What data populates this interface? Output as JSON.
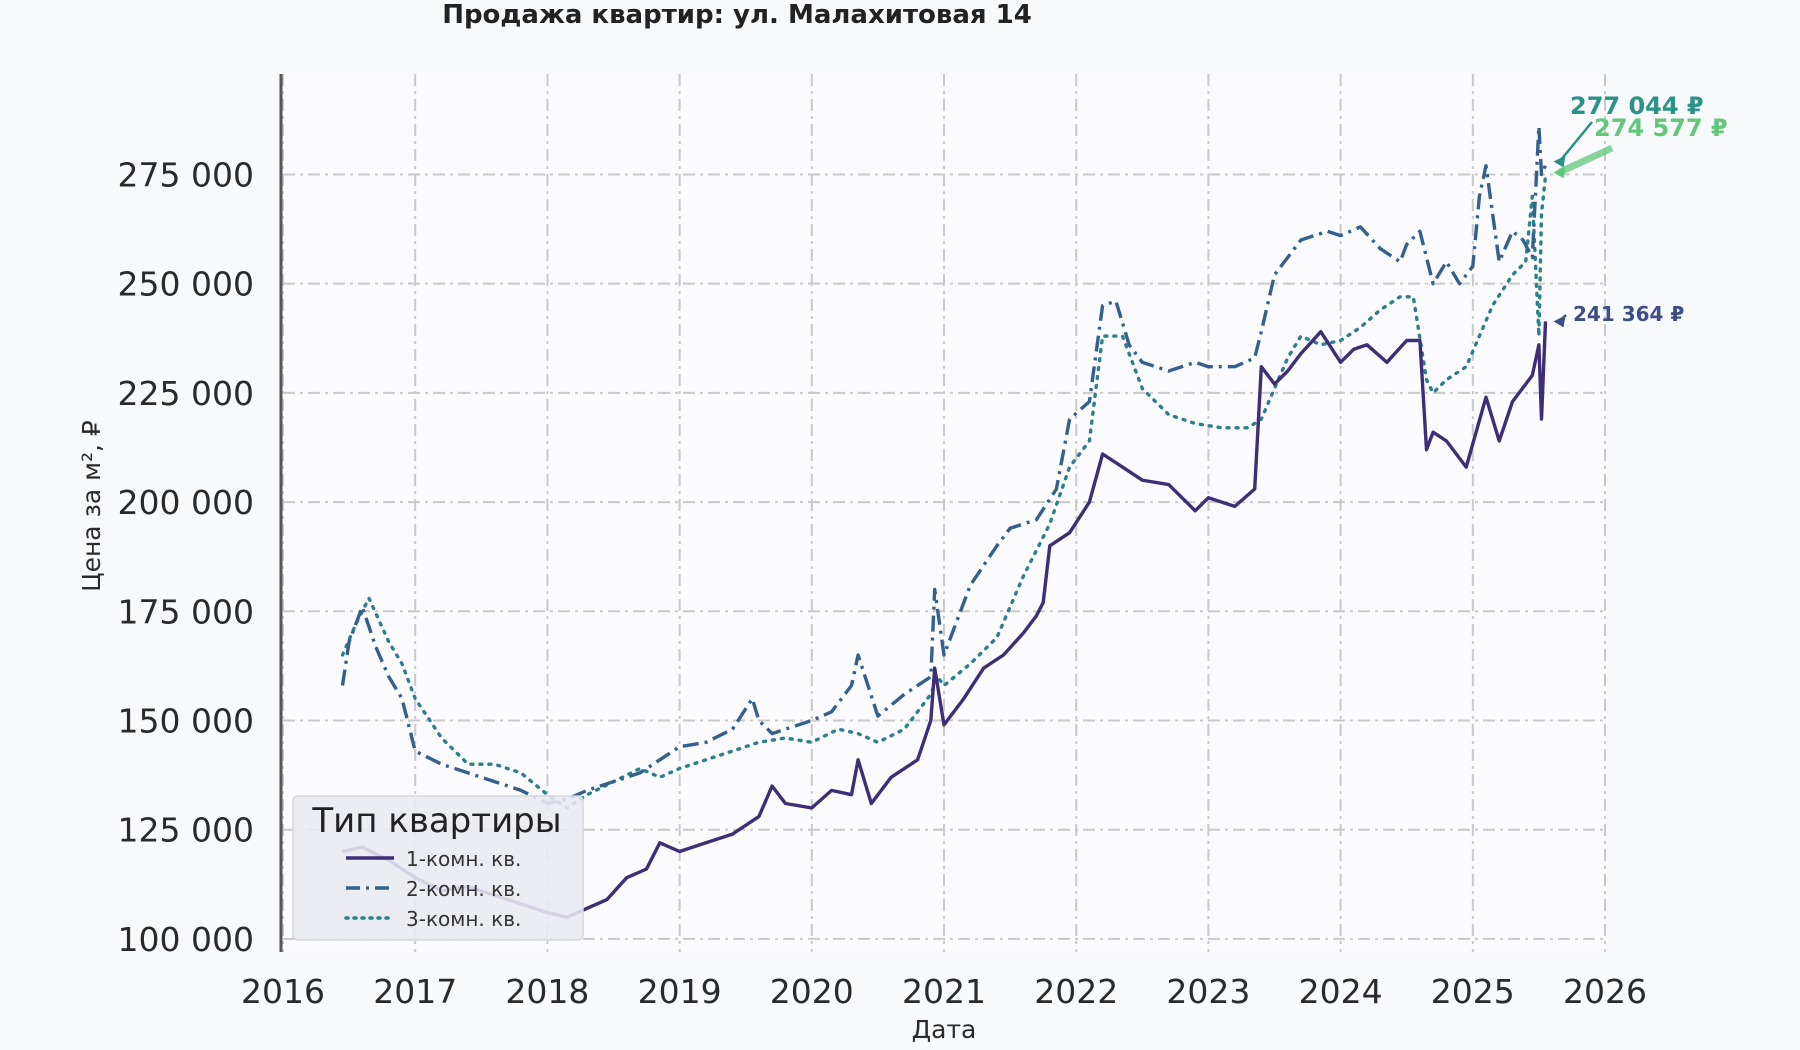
{
  "chart_data": {
    "type": "line",
    "title": "Продажа квартир: ул. Малахитовая 14",
    "xlabel": "Дата",
    "ylabel": "Цена за м², ₽",
    "xlim": [
      2016.0,
      2026.0
    ],
    "ylim": [
      97000,
      298000
    ],
    "x_ticks": [
      "2016",
      "2017",
      "2018",
      "2019",
      "2020",
      "2021",
      "2022",
      "2023",
      "2024",
      "2025",
      "2026"
    ],
    "y_ticks": [
      "100 000",
      "125 000",
      "150 000",
      "175 000",
      "200 000",
      "225 000",
      "250 000",
      "275 000"
    ],
    "y_tick_values": [
      100000,
      125000,
      150000,
      175000,
      200000,
      225000,
      250000,
      275000
    ],
    "grid": true,
    "legend": {
      "title": "Тип квартиры",
      "placement": "lower-left"
    },
    "series": [
      {
        "name": "1-комн. кв.",
        "color": "#3f2d76",
        "style": "solid",
        "x": [
          2016.45,
          2016.6,
          2016.8,
          2017.0,
          2017.2,
          2017.4,
          2017.6,
          2017.8,
          2018.0,
          2018.15,
          2018.3,
          2018.45,
          2018.6,
          2018.75,
          2018.85,
          2019.0,
          2019.2,
          2019.4,
          2019.6,
          2019.7,
          2019.8,
          2020.0,
          2020.15,
          2020.3,
          2020.35,
          2020.45,
          2020.6,
          2020.8,
          2020.9,
          2020.93,
          2021.0,
          2021.15,
          2021.3,
          2021.45,
          2021.6,
          2021.7,
          2021.75,
          2021.8,
          2021.95,
          2022.1,
          2022.2,
          2022.35,
          2022.5,
          2022.7,
          2022.9,
          2023.0,
          2023.2,
          2023.35,
          2023.4,
          2023.5,
          2023.6,
          2023.7,
          2023.85,
          2024.0,
          2024.1,
          2024.2,
          2024.35,
          2024.5,
          2024.6,
          2024.65,
          2024.7,
          2024.8,
          2024.95,
          2025.1,
          2025.2,
          2025.3,
          2025.45,
          2025.5,
          2025.52,
          2025.55
        ],
        "y": [
          120000,
          121000,
          118000,
          114000,
          111000,
          112000,
          110000,
          108000,
          106000,
          105000,
          107000,
          109000,
          114000,
          116000,
          122000,
          120000,
          122000,
          124000,
          128000,
          135000,
          131000,
          130000,
          134000,
          133000,
          141000,
          131000,
          137000,
          141000,
          150000,
          162000,
          149000,
          155000,
          162000,
          165000,
          170000,
          174000,
          177000,
          190000,
          193000,
          200000,
          211000,
          208000,
          205000,
          204000,
          198000,
          201000,
          199000,
          203000,
          231000,
          227000,
          230000,
          234000,
          239000,
          232000,
          235000,
          236000,
          232000,
          237000,
          237000,
          212000,
          216000,
          214000,
          208000,
          224000,
          214000,
          223000,
          229000,
          236000,
          219000,
          241364
        ]
      },
      {
        "name": "2-комн. кв.",
        "color": "#34608d",
        "style": "dashdot",
        "x": [
          2016.45,
          2016.5,
          2016.6,
          2016.7,
          2016.8,
          2016.9,
          2017.0,
          2017.2,
          2017.4,
          2017.6,
          2017.8,
          2018.0,
          2018.15,
          2018.3,
          2018.5,
          2018.7,
          2018.85,
          2019.0,
          2019.2,
          2019.4,
          2019.55,
          2019.6,
          2019.7,
          2019.8,
          2020.0,
          2020.15,
          2020.3,
          2020.35,
          2020.5,
          2020.7,
          2020.9,
          2020.93,
          2021.0,
          2021.2,
          2021.4,
          2021.5,
          2021.7,
          2021.85,
          2021.95,
          2022.1,
          2022.2,
          2022.3,
          2022.4,
          2022.5,
          2022.7,
          2022.9,
          2023.0,
          2023.2,
          2023.35,
          2023.4,
          2023.5,
          2023.7,
          2023.9,
          2024.0,
          2024.15,
          2024.3,
          2024.45,
          2024.5,
          2024.6,
          2024.7,
          2024.8,
          2024.9,
          2025.0,
          2025.05,
          2025.1,
          2025.2,
          2025.3,
          2025.38,
          2025.45,
          2025.5,
          2025.52,
          2025.55
        ],
        "y": [
          158000,
          168000,
          176000,
          167000,
          160000,
          155000,
          143000,
          140000,
          138000,
          136000,
          134000,
          131000,
          132000,
          134000,
          136000,
          138000,
          141000,
          144000,
          145000,
          148000,
          155000,
          150000,
          147000,
          148000,
          150000,
          152000,
          158000,
          165000,
          151000,
          156000,
          160000,
          180000,
          165000,
          181000,
          190000,
          194000,
          196000,
          203000,
          219000,
          223000,
          245000,
          246000,
          236000,
          232000,
          230000,
          232000,
          231000,
          231000,
          233000,
          239000,
          252000,
          260000,
          262000,
          261000,
          263000,
          258000,
          255000,
          259000,
          262000,
          250000,
          255000,
          250000,
          254000,
          270000,
          277000,
          255000,
          262000,
          260000,
          256000,
          286000,
          275000,
          277044
        ]
      },
      {
        "name": "3-комн. кв.",
        "color": "#2c7f8c",
        "style": "dotted",
        "x": [
          2016.45,
          2016.55,
          2016.65,
          2016.8,
          2016.9,
          2017.0,
          2017.2,
          2017.4,
          2017.6,
          2017.8,
          2018.0,
          2018.15,
          2018.3,
          2018.5,
          2018.7,
          2018.85,
          2019.0,
          2019.2,
          2019.4,
          2019.6,
          2019.8,
          2020.0,
          2020.2,
          2020.35,
          2020.5,
          2020.7,
          2020.9,
          2020.95,
          2021.0,
          2021.2,
          2021.4,
          2021.6,
          2021.8,
          2021.95,
          2022.1,
          2022.2,
          2022.35,
          2022.5,
          2022.7,
          2022.9,
          2023.1,
          2023.3,
          2023.4,
          2023.5,
          2023.6,
          2023.7,
          2023.85,
          2024.0,
          2024.15,
          2024.3,
          2024.45,
          2024.55,
          2024.65,
          2024.7,
          2024.8,
          2024.95,
          2025.05,
          2025.15,
          2025.3,
          2025.4,
          2025.45,
          2025.5,
          2025.52,
          2025.55
        ],
        "y": [
          165000,
          172000,
          178000,
          168000,
          163000,
          155000,
          146000,
          140000,
          140000,
          138000,
          133000,
          130000,
          133000,
          136000,
          139000,
          137000,
          139000,
          141000,
          143000,
          145000,
          146000,
          145000,
          148000,
          147000,
          145000,
          148000,
          156000,
          160000,
          158000,
          163000,
          169000,
          183000,
          195000,
          208000,
          214000,
          238000,
          238000,
          226000,
          220000,
          218000,
          217000,
          217000,
          219000,
          226000,
          233000,
          238000,
          236000,
          237000,
          240000,
          244000,
          247000,
          247000,
          228000,
          225000,
          228000,
          231000,
          238000,
          245000,
          252000,
          255000,
          270000,
          238000,
          266000,
          274577
        ]
      }
    ],
    "annotations": [
      {
        "text": "277 044 ₽",
        "color": "#2a9286",
        "series": "2-комн. кв."
      },
      {
        "text": "274 577 ₽",
        "color": "#63c77b",
        "series": "3-комн. кв."
      },
      {
        "text": "241 364 ₽",
        "color": "#3e4e86",
        "series": "1-комн. кв."
      }
    ]
  }
}
